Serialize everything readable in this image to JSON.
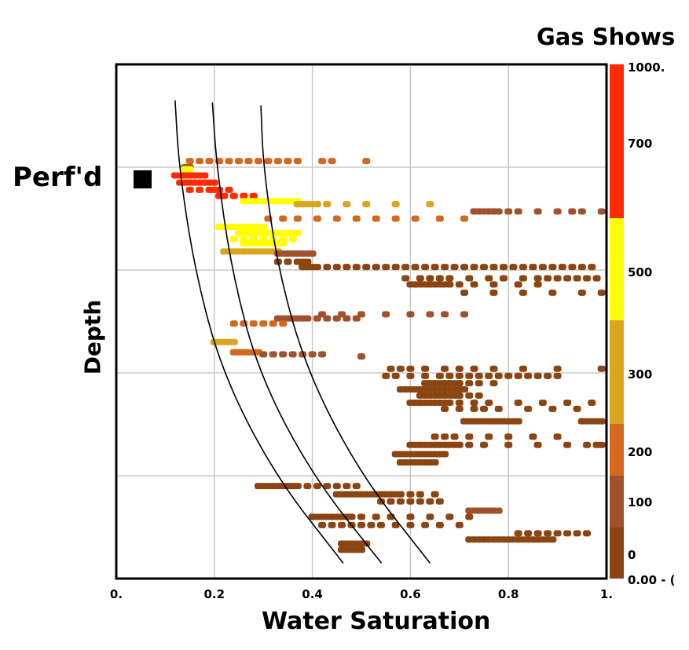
{
  "chart_data": {
    "type": "scatter",
    "xlabel": "Water Saturation",
    "ylabel": "Depth",
    "xlim": [
      0,
      1
    ],
    "ylim": [
      0,
      5
    ],
    "x_ticks": [
      "0.",
      "0.2",
      "0.4",
      "0.6",
      "0.8",
      "1."
    ],
    "grid": true,
    "annotation": "Perf'd",
    "legend": {
      "title": "Gas Shows",
      "placement": "right",
      "labels": [
        "1000.",
        "700",
        "500",
        "300",
        "200",
        "100",
        "0",
        "0.00 - ("
      ],
      "bands": [
        {
          "color": "#FF2A00"
        },
        {
          "color": "#FFFF00"
        },
        {
          "color": "#DAA520"
        },
        {
          "color": "#D2691E"
        },
        {
          "color": "#A0522D"
        },
        {
          "color": "#8B4513"
        }
      ]
    },
    "curves": [
      [
        [
          0.12,
          0.35
        ],
        [
          0.128,
          1.0
        ],
        [
          0.16,
          2.0
        ],
        [
          0.216,
          3.0
        ],
        [
          0.324,
          4.0
        ],
        [
          0.463,
          4.85
        ]
      ],
      [
        [
          0.196,
          0.37
        ],
        [
          0.205,
          1.0
        ],
        [
          0.235,
          2.0
        ],
        [
          0.29,
          3.0
        ],
        [
          0.4,
          4.0
        ],
        [
          0.541,
          4.85
        ]
      ],
      [
        [
          0.295,
          0.4
        ],
        [
          0.3,
          1.0
        ],
        [
          0.33,
          2.0
        ],
        [
          0.39,
          3.0
        ],
        [
          0.5,
          4.0
        ],
        [
          0.64,
          4.85
        ]
      ]
    ],
    "rows": [
      {
        "d": 0.94,
        "c": 2,
        "x": [
          0.15,
          0.17,
          0.19,
          0.21,
          0.23,
          0.25,
          0.27,
          0.29,
          0.31,
          0.33,
          0.35,
          0.37,
          0.42,
          0.44,
          0.51
        ]
      },
      {
        "d": 1.0,
        "c": 1,
        "x": [
          0.15,
          0.14
        ]
      },
      {
        "d": 1.0,
        "c": 1,
        "x": [
          0.15
        ]
      },
      {
        "d": 1.02,
        "c": 4,
        "x": [
          0.14,
          0.15
        ]
      },
      {
        "d": 1.08,
        "c": 5,
        "x": [
          0.12,
          0.13,
          0.14,
          0.15,
          0.16,
          0.17,
          0.18
        ]
      },
      {
        "d": 1.15,
        "c": 5,
        "x": [
          0.13,
          0.14,
          0.15,
          0.16,
          0.17,
          0.18,
          0.19,
          0.2
        ]
      },
      {
        "d": 1.22,
        "c": 5,
        "x": [
          0.15,
          0.17,
          0.19,
          0.2,
          0.21,
          0.23
        ]
      },
      {
        "d": 1.28,
        "c": 5,
        "x": [
          0.21,
          0.22,
          0.24,
          0.26,
          0.28
        ]
      },
      {
        "d": 1.33,
        "c": 4,
        "x": [
          0.26,
          0.27,
          0.28,
          0.29,
          0.3,
          0.31,
          0.32,
          0.33,
          0.34,
          0.35,
          0.36,
          0.37
        ]
      },
      {
        "d": 1.36,
        "c": 3,
        "x": [
          0.37,
          0.38,
          0.39,
          0.4,
          0.41,
          0.43,
          0.47,
          0.51,
          0.57,
          0.64
        ]
      },
      {
        "d": 1.43,
        "c": 1,
        "x": [
          0.73,
          0.74,
          0.75,
          0.76,
          0.77,
          0.78,
          0.8,
          0.82,
          0.86,
          0.9,
          0.93,
          0.95,
          0.99
        ]
      },
      {
        "d": 1.5,
        "c": 2,
        "x": [
          0.31,
          0.34,
          0.37,
          0.41,
          0.45,
          0.49,
          0.53,
          0.57,
          0.61,
          0.66,
          0.71
        ]
      },
      {
        "d": 1.58,
        "c": 4,
        "x": [
          0.21,
          0.22,
          0.23,
          0.24,
          0.25,
          0.26,
          0.27,
          0.28,
          0.29,
          0.3
        ]
      },
      {
        "d": 1.64,
        "c": 4,
        "x": [
          0.25,
          0.26,
          0.27,
          0.28,
          0.29,
          0.3,
          0.31,
          0.32,
          0.33,
          0.34,
          0.35,
          0.36,
          0.37
        ]
      },
      {
        "d": 1.7,
        "c": 4,
        "x": [
          0.24,
          0.26,
          0.28,
          0.3,
          0.32,
          0.34,
          0.36
        ]
      },
      {
        "d": 1.74,
        "c": 4,
        "x": [
          0.26,
          0.27,
          0.28,
          0.29,
          0.3,
          0.31,
          0.32,
          0.33,
          0.34
        ]
      },
      {
        "d": 1.82,
        "c": 3,
        "x": [
          0.22,
          0.23,
          0.24,
          0.25,
          0.26,
          0.27,
          0.28,
          0.29,
          0.3,
          0.31,
          0.32,
          0.33
        ]
      },
      {
        "d": 1.84,
        "c": 1,
        "x": [
          0.33,
          0.34,
          0.35,
          0.36,
          0.37,
          0.38,
          0.39,
          0.4
        ]
      },
      {
        "d": 1.92,
        "c": 0,
        "x": [
          0.33,
          0.35,
          0.37,
          0.38,
          0.39
        ]
      },
      {
        "d": 1.97,
        "c": 0,
        "x": [
          0.38,
          0.39,
          0.4,
          0.41,
          0.43,
          0.45,
          0.47,
          0.49,
          0.51,
          0.53,
          0.55,
          0.57,
          0.59,
          0.61,
          0.63,
          0.65,
          0.67,
          0.69,
          0.71,
          0.73,
          0.75,
          0.77,
          0.79,
          0.81,
          0.83,
          0.85,
          0.87,
          0.89,
          0.91,
          0.93,
          0.95,
          0.97
        ]
      },
      {
        "d": 2.08,
        "c": 0,
        "x": [
          0.59,
          0.62,
          0.64,
          0.66,
          0.68,
          0.72,
          0.76,
          0.79,
          0.83,
          0.86,
          0.88,
          0.9,
          0.92,
          0.94,
          0.96,
          0.98
        ]
      },
      {
        "d": 2.14,
        "c": 0,
        "x": [
          0.6,
          0.61,
          0.62,
          0.63,
          0.64,
          0.65,
          0.66,
          0.67,
          0.68,
          0.7,
          0.73,
          0.77,
          0.82,
          0.86
        ]
      },
      {
        "d": 2.22,
        "c": 0,
        "x": [
          0.71,
          0.77,
          0.83,
          0.89,
          0.95,
          0.99
        ]
      },
      {
        "d": 2.43,
        "c": 1,
        "x": [
          0.42,
          0.46,
          0.5,
          0.55,
          0.6,
          0.64,
          0.67,
          0.71
        ]
      },
      {
        "d": 2.47,
        "c": 1,
        "x": [
          0.33,
          0.34,
          0.35,
          0.36,
          0.37,
          0.38,
          0.39,
          0.41,
          0.43,
          0.45,
          0.47,
          0.49
        ]
      },
      {
        "d": 2.52,
        "c": 2,
        "x": [
          0.24,
          0.26,
          0.28,
          0.3,
          0.32,
          0.34
        ]
      },
      {
        "d": 2.7,
        "c": 3,
        "x": [
          0.2,
          0.21,
          0.22,
          0.23,
          0.24
        ]
      },
      {
        "d": 2.8,
        "c": 2,
        "x": [
          0.24,
          0.25,
          0.26,
          0.27,
          0.28,
          0.29
        ]
      },
      {
        "d": 2.82,
        "c": 1,
        "x": [
          0.3,
          0.32,
          0.34,
          0.36,
          0.38,
          0.4,
          0.42
        ]
      },
      {
        "d": 2.84,
        "c": 1,
        "x": [
          0.5
        ]
      },
      {
        "d": 2.96,
        "c": 0,
        "x": [
          0.56,
          0.58,
          0.6,
          0.63,
          0.67,
          0.7,
          0.73,
          0.77,
          0.83,
          0.9,
          0.99
        ]
      },
      {
        "d": 3.03,
        "c": 0,
        "x": [
          0.55,
          0.57,
          0.6,
          0.63,
          0.66,
          0.68,
          0.7,
          0.72,
          0.74,
          0.76,
          0.78,
          0.8,
          0.82,
          0.84,
          0.86,
          0.88,
          0.9
        ]
      },
      {
        "d": 3.1,
        "c": 0,
        "x": [
          0.63,
          0.64,
          0.65,
          0.66,
          0.67,
          0.68,
          0.69,
          0.7,
          0.72,
          0.74,
          0.77
        ]
      },
      {
        "d": 3.16,
        "c": 0,
        "x": [
          0.58,
          0.59,
          0.6,
          0.61,
          0.62,
          0.63,
          0.64,
          0.65,
          0.66,
          0.67,
          0.68,
          0.69,
          0.7,
          0.71
        ]
      },
      {
        "d": 3.22,
        "c": 0,
        "x": [
          0.62,
          0.63,
          0.64,
          0.65,
          0.66,
          0.67,
          0.68,
          0.69,
          0.7,
          0.72,
          0.74
        ]
      },
      {
        "d": 3.29,
        "c": 0,
        "x": [
          0.6,
          0.61,
          0.62,
          0.63,
          0.64,
          0.65,
          0.66,
          0.67,
          0.68,
          0.7,
          0.73,
          0.76,
          0.82,
          0.87,
          0.92,
          0.97
        ]
      },
      {
        "d": 3.35,
        "c": 0,
        "x": [
          0.67,
          0.7,
          0.73,
          0.75,
          0.78,
          0.84,
          0.89,
          0.94
        ]
      },
      {
        "d": 3.47,
        "c": 0,
        "x": [
          0.71,
          0.72,
          0.73,
          0.74,
          0.75,
          0.76,
          0.77,
          0.78,
          0.79,
          0.8,
          0.81,
          0.82,
          0.95,
          0.96,
          0.97,
          0.98,
          0.99
        ]
      },
      {
        "d": 3.62,
        "c": 0,
        "x": [
          0.65,
          0.67,
          0.69,
          0.72,
          0.76,
          0.8,
          0.85,
          0.9
        ]
      },
      {
        "d": 3.7,
        "c": 0,
        "x": [
          0.6,
          0.61,
          0.62,
          0.63,
          0.64,
          0.65,
          0.66,
          0.67,
          0.68,
          0.69,
          0.7,
          0.72,
          0.75,
          0.8,
          0.86,
          0.92,
          0.96,
          0.98,
          0.99
        ]
      },
      {
        "d": 3.79,
        "c": 0,
        "x": [
          0.57,
          0.58,
          0.59,
          0.6,
          0.61,
          0.62,
          0.63,
          0.64,
          0.65,
          0.66,
          0.67
        ]
      },
      {
        "d": 3.87,
        "c": 0,
        "x": [
          0.58,
          0.59,
          0.6,
          0.61,
          0.62,
          0.63,
          0.64,
          0.65
        ]
      },
      {
        "d": 4.1,
        "c": 0,
        "x": [
          0.29,
          0.3,
          0.31,
          0.32,
          0.33,
          0.34,
          0.35,
          0.36,
          0.37,
          0.39,
          0.41,
          0.43,
          0.45,
          0.47,
          0.49
        ]
      },
      {
        "d": 4.18,
        "c": 0,
        "x": [
          0.45,
          0.46,
          0.47,
          0.48,
          0.49,
          0.5,
          0.51,
          0.52,
          0.53,
          0.54,
          0.55,
          0.56,
          0.57,
          0.58,
          0.6,
          0.62,
          0.65
        ]
      },
      {
        "d": 4.25,
        "c": 0,
        "x": [
          0.54,
          0.56,
          0.58,
          0.6,
          0.62,
          0.64,
          0.66
        ]
      },
      {
        "d": 4.34,
        "c": 1,
        "x": [
          0.72,
          0.73,
          0.74,
          0.75,
          0.76,
          0.77,
          0.78
        ]
      },
      {
        "d": 4.4,
        "c": 0,
        "x": [
          0.4,
          0.41,
          0.42,
          0.43,
          0.44,
          0.45,
          0.46,
          0.47,
          0.48,
          0.5,
          0.53,
          0.56,
          0.6,
          0.64,
          0.68,
          0.72
        ]
      },
      {
        "d": 4.48,
        "c": 0,
        "x": [
          0.42,
          0.44,
          0.46,
          0.48,
          0.5,
          0.52,
          0.54,
          0.57,
          0.6,
          0.63,
          0.66,
          0.7
        ]
      },
      {
        "d": 4.56,
        "c": 0,
        "x": [
          0.82,
          0.84,
          0.86,
          0.88,
          0.9,
          0.92,
          0.94,
          0.96
        ]
      },
      {
        "d": 4.62,
        "c": 0,
        "x": [
          0.72,
          0.73,
          0.74,
          0.75,
          0.76,
          0.77,
          0.78,
          0.79,
          0.8,
          0.81,
          0.82,
          0.83,
          0.84,
          0.85,
          0.86,
          0.87,
          0.88,
          0.89
        ]
      },
      {
        "d": 4.66,
        "c": 0,
        "x": [
          0.46,
          0.47,
          0.48,
          0.49,
          0.5,
          0.51
        ]
      },
      {
        "d": 4.72,
        "c": 0,
        "x": [
          0.46,
          0.47,
          0.48,
          0.49,
          0.5
        ]
      }
    ]
  }
}
